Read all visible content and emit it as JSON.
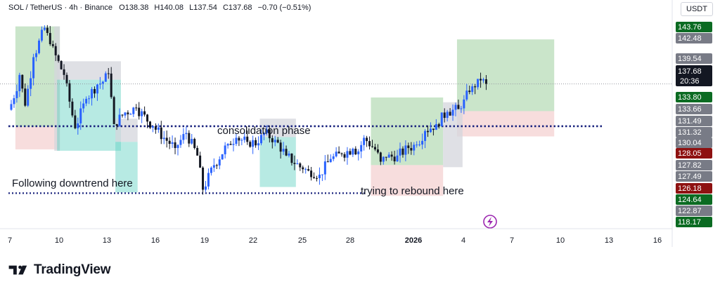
{
  "header": {
    "symbol": "SOL / TetherUS · 4h · Binance",
    "open_label": "O",
    "open": "138.38",
    "high_label": "H",
    "high": "140.08",
    "low_label": "L",
    "low": "137.54",
    "close_label": "C",
    "close": "137.68",
    "change": "−0.70 (−0.51%)"
  },
  "currency": "USDT",
  "brand": {
    "name": "TradingView"
  },
  "colors": {
    "up": "#2962ff",
    "down": "#131722",
    "green_zone": "#9fcf9f",
    "teal_zone": "#5fd0c0",
    "red_zone": "#f2c7c7",
    "grey_zone": "#d4d6dc",
    "dotted": "#1a237e",
    "current_tag": "#131722",
    "tp_tag": "#0b6b22",
    "sl_tag": "#8e1111",
    "grey_tag": "#787b86"
  },
  "chart_data": {
    "type": "candlestick",
    "title": "SOL / TetherUS · 4h · Binance",
    "ylim": [
      116.5,
      147.5
    ],
    "x_tick_labels": [
      "7",
      "10",
      "13",
      "16",
      "19",
      "22",
      "25",
      "28",
      "2026",
      "4",
      "7",
      "10",
      "13",
      "16"
    ],
    "price_axis_labels": [
      {
        "value": 143.76,
        "text": "143.76",
        "style": "tp"
      },
      {
        "value": 142.48,
        "text": "142.48",
        "style": "grey"
      },
      {
        "value": 139.54,
        "text": "139.54",
        "style": "grey"
      },
      {
        "value": 137.68,
        "text": "137.68",
        "style": "current",
        "sub": "20:36"
      },
      {
        "value": 133.8,
        "text": "133.80",
        "style": "tp"
      },
      {
        "value": 133.66,
        "text": "133.66",
        "style": "grey"
      },
      {
        "value": 131.49,
        "text": "131.49",
        "style": "grey"
      },
      {
        "value": 131.32,
        "text": "131.32",
        "style": "grey"
      },
      {
        "value": 130.04,
        "text": "130.04",
        "style": "grey"
      },
      {
        "value": 128.05,
        "text": "128.05",
        "style": "sl"
      },
      {
        "value": 127.82,
        "text": "127.82",
        "style": "grey"
      },
      {
        "value": 127.49,
        "text": "127.49",
        "style": "grey"
      },
      {
        "value": 126.18,
        "text": "126.18",
        "style": "sl"
      },
      {
        "value": 124.64,
        "text": "124.64",
        "style": "tp"
      },
      {
        "value": 122.87,
        "text": "122.87",
        "style": "grey"
      },
      {
        "value": 118.17,
        "text": "118.17",
        "style": "tp"
      }
    ],
    "current_price": 137.68,
    "annotations": [
      {
        "text": "Following downtrend here"
      },
      {
        "text": "consolidation phase"
      },
      {
        "text": "trying to rebound here"
      }
    ],
    "support_level": 131.49,
    "support_level_low": 121.7,
    "candle_path": [
      [
        0,
        133.9
      ],
      [
        2,
        135.6
      ],
      [
        4,
        139.0
      ],
      [
        6,
        134.5
      ],
      [
        9,
        141.6
      ],
      [
        13,
        145.9
      ],
      [
        15,
        143.5
      ],
      [
        20,
        139.0
      ],
      [
        24,
        131.2
      ],
      [
        28,
        135.5
      ],
      [
        32,
        137.6
      ],
      [
        34,
        138.0
      ],
      [
        36,
        139.2
      ],
      [
        38,
        131.8
      ],
      [
        42,
        133.5
      ],
      [
        46,
        134.2
      ],
      [
        52,
        131.5
      ],
      [
        56,
        129.8
      ],
      [
        60,
        128.3
      ],
      [
        64,
        130.5
      ],
      [
        68,
        127.2
      ],
      [
        70,
        122.2
      ],
      [
        74,
        125.8
      ],
      [
        79,
        128.9
      ],
      [
        82,
        129.8
      ],
      [
        86,
        129.2
      ],
      [
        90,
        129.0
      ],
      [
        92,
        130.5
      ],
      [
        96,
        129.5
      ],
      [
        100,
        127.2
      ],
      [
        106,
        125.2
      ],
      [
        108,
        125.0
      ],
      [
        112,
        124.4
      ],
      [
        116,
        126.7
      ],
      [
        120,
        127.4
      ],
      [
        124,
        128.2
      ],
      [
        126,
        127.8
      ],
      [
        128,
        129.8
      ],
      [
        132,
        128.1
      ],
      [
        134,
        126.3
      ],
      [
        136,
        126.9
      ],
      [
        140,
        127.2
      ],
      [
        144,
        128.3
      ],
      [
        147,
        128.8
      ],
      [
        150,
        130.8
      ],
      [
        154,
        131.8
      ],
      [
        158,
        133.6
      ],
      [
        162,
        134.0
      ],
      [
        164,
        135.4
      ],
      [
        166,
        136.5
      ],
      [
        168,
        137.2
      ],
      [
        170,
        138.2
      ],
      [
        172,
        137.7
      ]
    ],
    "zones": [
      {
        "name": "downtrend-green",
        "type": "green",
        "from": 2,
        "to": 18,
        "top": 146.1,
        "bottom": 131.4
      },
      {
        "name": "downtrend-red",
        "type": "red",
        "from": 2,
        "to": 18,
        "top": 131.4,
        "bottom": 128.1
      },
      {
        "name": "downtrend-grey",
        "type": "grey",
        "from": 16,
        "to": 18,
        "top": 146.1,
        "bottom": 127.9
      },
      {
        "name": "grey-top-a",
        "type": "grey",
        "from": 17,
        "to": 40,
        "top": 141.0,
        "bottom": 138.3
      },
      {
        "name": "teal-a",
        "type": "teal",
        "from": 17,
        "to": 40,
        "top": 138.3,
        "bottom": 127.9
      },
      {
        "name": "grey-top-b",
        "type": "grey",
        "from": 38,
        "to": 46,
        "top": 132.6,
        "bottom": 129.2
      },
      {
        "name": "teal-b",
        "type": "teal",
        "from": 38,
        "to": 46,
        "top": 129.2,
        "bottom": 121.8
      },
      {
        "name": "grey-top-c",
        "type": "grey",
        "from": 90,
        "to": 103,
        "top": 132.6,
        "bottom": 129.9
      },
      {
        "name": "teal-c",
        "type": "teal",
        "from": 90,
        "to": 103,
        "top": 129.9,
        "bottom": 122.6
      },
      {
        "name": "rebound-green",
        "type": "green",
        "from": 130,
        "to": 156,
        "top": 135.7,
        "bottom": 125.8
      },
      {
        "name": "rebound-red",
        "type": "red",
        "from": 130,
        "to": 156,
        "top": 125.8,
        "bottom": 121.3
      },
      {
        "name": "target-green",
        "type": "green",
        "from": 161,
        "to": 196,
        "top": 144.2,
        "bottom": 133.7
      },
      {
        "name": "target-red",
        "type": "red",
        "from": 161,
        "to": 196,
        "top": 133.7,
        "bottom": 130.0
      },
      {
        "name": "entry-grey",
        "type": "grey",
        "from": 156,
        "to": 163,
        "top": 135.0,
        "bottom": 125.5
      }
    ]
  }
}
